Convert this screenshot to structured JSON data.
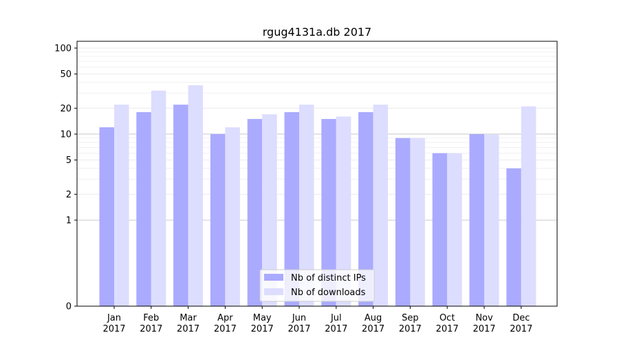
{
  "chart_data": {
    "type": "bar",
    "title": "rgug4131a.db 2017",
    "xlabel": "",
    "ylabel": "",
    "y_scale": "symlog",
    "ylim": [
      0,
      120
    ],
    "y_ticks": [
      0,
      1,
      2,
      5,
      10,
      20,
      50,
      100
    ],
    "categories": [
      {
        "month": "Jan",
        "year": "2017"
      },
      {
        "month": "Feb",
        "year": "2017"
      },
      {
        "month": "Mar",
        "year": "2017"
      },
      {
        "month": "Apr",
        "year": "2017"
      },
      {
        "month": "May",
        "year": "2017"
      },
      {
        "month": "Jun",
        "year": "2017"
      },
      {
        "month": "Jul",
        "year": "2017"
      },
      {
        "month": "Aug",
        "year": "2017"
      },
      {
        "month": "Sep",
        "year": "2017"
      },
      {
        "month": "Oct",
        "year": "2017"
      },
      {
        "month": "Nov",
        "year": "2017"
      },
      {
        "month": "Dec",
        "year": "2017"
      }
    ],
    "series": [
      {
        "name": "Nb of distinct IPs",
        "color": "#aaaaff",
        "values": [
          12,
          18,
          22,
          10,
          15,
          18,
          15,
          18,
          9,
          6,
          10,
          4
        ]
      },
      {
        "name": "Nb of downloads",
        "color": "#ddddff",
        "values": [
          22,
          32,
          37,
          12,
          17,
          22,
          16,
          22,
          9,
          6,
          10,
          21
        ]
      }
    ],
    "grid": true,
    "legend_position": "lower center"
  }
}
